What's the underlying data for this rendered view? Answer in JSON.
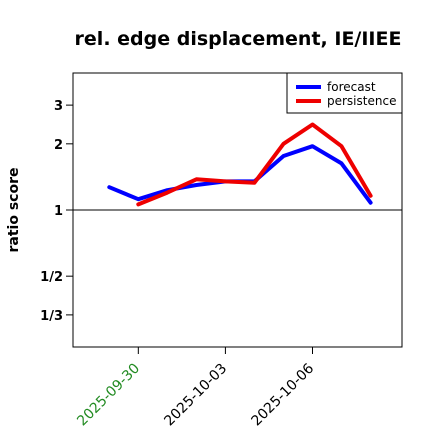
{
  "chart_data": {
    "type": "line",
    "title": "rel. edge displacement, IE/IIEE",
    "ylabel": "ratio score",
    "xlabel": "",
    "y_scale": "log",
    "ylim": [
      "1/4.2",
      "4.2"
    ],
    "y_ticks": [
      {
        "label": "1/3",
        "value": 0.3333
      },
      {
        "label": "1/2",
        "value": 0.5
      },
      {
        "label": "1",
        "value": 1
      },
      {
        "label": "2",
        "value": 2
      },
      {
        "label": "3",
        "value": 3
      }
    ],
    "x_ticks": [
      {
        "label": "2025-09-30",
        "date": "2025-09-30",
        "color": "#228B22"
      },
      {
        "label": "2025-10-03",
        "date": "2025-10-03",
        "color": "#000000"
      },
      {
        "label": "2025-10-06",
        "date": "2025-10-06",
        "color": "#000000"
      }
    ],
    "xlim": [
      "2025-09-27T18:00",
      "2025-10-09T02:00"
    ],
    "reference_line": 1,
    "legend_position": "top-right",
    "series": [
      {
        "name": "forecast",
        "color": "#0000ff",
        "points": [
          {
            "x": "2025-09-29",
            "y": 1.27
          },
          {
            "x": "2025-09-30",
            "y": 1.12
          },
          {
            "x": "2025-10-01",
            "y": 1.23
          },
          {
            "x": "2025-10-02",
            "y": 1.3
          },
          {
            "x": "2025-10-03",
            "y": 1.35
          },
          {
            "x": "2025-10-04",
            "y": 1.35
          },
          {
            "x": "2025-10-05",
            "y": 1.76
          },
          {
            "x": "2025-10-06",
            "y": 1.95
          },
          {
            "x": "2025-10-07",
            "y": 1.63
          },
          {
            "x": "2025-10-08",
            "y": 1.08
          }
        ]
      },
      {
        "name": "persistence",
        "color": "#ee0000",
        "points": [
          {
            "x": "2025-09-30",
            "y": 1.06
          },
          {
            "x": "2025-10-01",
            "y": 1.2
          },
          {
            "x": "2025-10-02",
            "y": 1.38
          },
          {
            "x": "2025-10-03",
            "y": 1.35
          },
          {
            "x": "2025-10-04",
            "y": 1.33
          },
          {
            "x": "2025-10-05",
            "y": 2.0
          },
          {
            "x": "2025-10-06",
            "y": 2.45
          },
          {
            "x": "2025-10-07",
            "y": 1.95
          },
          {
            "x": "2025-10-08",
            "y": 1.16
          }
        ]
      }
    ]
  }
}
